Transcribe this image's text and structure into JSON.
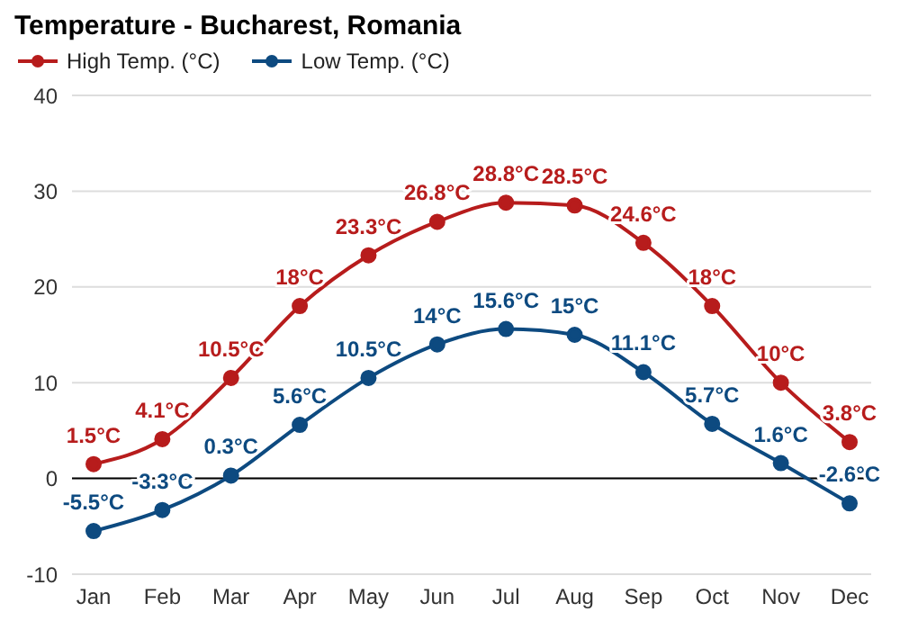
{
  "chart_data": {
    "type": "line",
    "title": "Temperature - Bucharest, Romania",
    "categories": [
      "Jan",
      "Feb",
      "Mar",
      "Apr",
      "May",
      "Jun",
      "Jul",
      "Aug",
      "Sep",
      "Oct",
      "Nov",
      "Dec"
    ],
    "series": [
      {
        "name": "High Temp. (°C)",
        "color": "#b71c1c",
        "values": [
          1.5,
          4.1,
          10.5,
          18,
          23.3,
          26.8,
          28.8,
          28.5,
          24.6,
          18,
          10,
          3.8
        ],
        "value_labels": [
          "1.5°C",
          "4.1°C",
          "10.5°C",
          "18°C",
          "23.3°C",
          "26.8°C",
          "28.8°C",
          "28.5°C",
          "24.6°C",
          "18°C",
          "10°C",
          "3.8°C"
        ]
      },
      {
        "name": "Low Temp. (°C)",
        "color": "#0d4a80",
        "values": [
          -5.5,
          -3.3,
          0.3,
          5.6,
          10.5,
          14,
          15.6,
          15,
          11.1,
          5.7,
          1.6,
          -2.6
        ],
        "value_labels": [
          "-5.5°C",
          "-3.3°C",
          "0.3°C",
          "5.6°C",
          "10.5°C",
          "14°C",
          "15.6°C",
          "15°C",
          "11.1°C",
          "5.7°C",
          "1.6°C",
          "-2.6°C"
        ]
      }
    ],
    "ylim": [
      -10,
      40
    ],
    "yticks": [
      -10,
      0,
      10,
      20,
      30,
      40
    ],
    "grid": "y",
    "legend": "top left",
    "marker": "circle",
    "line_style": "solid",
    "ref_lines": [
      {
        "axis": "y",
        "value": 0,
        "color": "#000000"
      }
    ]
  }
}
